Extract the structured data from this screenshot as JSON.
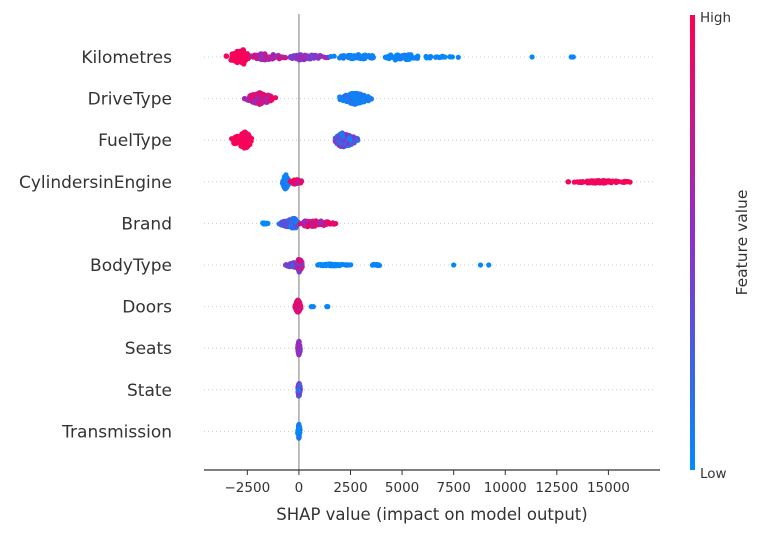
{
  "chart_data": {
    "type": "scatter",
    "subtype": "shap-beeswarm",
    "title": "",
    "xlabel": "SHAP value (impact on model output)",
    "xlim": [
      -4600,
      17500
    ],
    "xticks": [
      {
        "value": -2500,
        "label": "−2500"
      },
      {
        "value": 0,
        "label": "0"
      },
      {
        "value": 2500,
        "label": "2500"
      },
      {
        "value": 5000,
        "label": "5000"
      },
      {
        "value": 7500,
        "label": "7500"
      },
      {
        "value": 10000,
        "label": "10000"
      },
      {
        "value": 12500,
        "label": "12500"
      },
      {
        "value": 15000,
        "label": "15000"
      }
    ],
    "grid": "horizontal dotted row guides",
    "colors": {
      "low": "#008bfb",
      "high": "#ff0052",
      "mid": "#8a32c9",
      "zero_line": "#999999",
      "axis": "#333333"
    },
    "colorbar": {
      "title": "Feature value",
      "high_label": "High",
      "low_label": "Low",
      "placement": "right"
    },
    "features": [
      {
        "name": "Kilometres",
        "clusters": [
          {
            "min": -3600,
            "max": -2400,
            "peak": -2700,
            "n": 90,
            "maxSpread": 0.45,
            "fval": [
              0.92,
              1.0
            ]
          },
          {
            "min": -2400,
            "max": -500,
            "peak": -1800,
            "n": 60,
            "maxSpread": 0.22,
            "fval": [
              0.5,
              0.85
            ]
          },
          {
            "min": -500,
            "max": 1500,
            "peak": 0,
            "n": 60,
            "maxSpread": 0.18,
            "fval": [
              0.3,
              0.6
            ]
          },
          {
            "min": 1500,
            "max": 4000,
            "peak": 3000,
            "n": 60,
            "maxSpread": 0.15,
            "fval": [
              0.0,
              0.12
            ]
          },
          {
            "min": 4000,
            "max": 6000,
            "peak": 4900,
            "n": 50,
            "maxSpread": 0.22,
            "fval": [
              0.0,
              0.08
            ]
          },
          {
            "min": 6000,
            "max": 8400,
            "peak": 6200,
            "n": 18,
            "maxSpread": 0.06,
            "fval": [
              0.0,
              0.05
            ]
          }
        ],
        "points": [
          {
            "x": 11300,
            "f": 0.02
          },
          {
            "x": 13200,
            "f": 0.02
          },
          {
            "x": 13300,
            "f": 0.02
          }
        ]
      },
      {
        "name": "DriveType",
        "clusters": [
          {
            "min": -2700,
            "max": -1100,
            "peak": -1900,
            "n": 120,
            "maxSpread": 0.35,
            "fval": [
              0.55,
              1.0
            ]
          },
          {
            "min": 1900,
            "max": 3600,
            "peak": 2700,
            "n": 110,
            "maxSpread": 0.35,
            "fval": [
              0.02,
              0.15
            ]
          }
        ],
        "points": []
      },
      {
        "name": "FuelType",
        "clusters": [
          {
            "min": -3300,
            "max": -2200,
            "peak": -2600,
            "n": 120,
            "maxSpread": 0.5,
            "fval": [
              0.92,
              1.0
            ]
          },
          {
            "min": 1700,
            "max": 2900,
            "peak": 2100,
            "n": 110,
            "maxSpread": 0.45,
            "fval": [
              0.02,
              0.55
            ]
          }
        ],
        "points": []
      },
      {
        "name": "CylindersinEngine",
        "clusters": [
          {
            "min": -850,
            "max": -450,
            "peak": -650,
            "n": 80,
            "maxSpread": 0.45,
            "fval": [
              0.0,
              0.1
            ]
          },
          {
            "min": -450,
            "max": 300,
            "peak": -200,
            "n": 25,
            "maxSpread": 0.15,
            "fval": [
              0.7,
              1.0
            ]
          },
          {
            "min": 12700,
            "max": 16300,
            "peak": 14500,
            "n": 90,
            "maxSpread": 0.08,
            "fval": [
              0.9,
              1.0
            ]
          }
        ],
        "points": []
      },
      {
        "name": "Brand",
        "clusters": [
          {
            "min": -1900,
            "max": -1400,
            "peak": -1700,
            "n": 8,
            "maxSpread": 0.05,
            "fval": [
              0.0,
              0.05
            ]
          },
          {
            "min": -1000,
            "max": 0,
            "peak": -200,
            "n": 90,
            "maxSpread": 0.32,
            "fval": [
              0.0,
              0.4
            ]
          },
          {
            "min": 0,
            "max": 2000,
            "peak": 400,
            "n": 90,
            "maxSpread": 0.2,
            "fval": [
              0.55,
              1.0
            ]
          }
        ],
        "points": []
      },
      {
        "name": "BodyType",
        "clusters": [
          {
            "min": -800,
            "max": 0,
            "peak": -200,
            "n": 30,
            "maxSpread": 0.15,
            "fval": [
              0.2,
              0.6
            ]
          },
          {
            "min": -100,
            "max": 200,
            "peak": 0,
            "n": 60,
            "maxSpread": 0.45,
            "fval": [
              0.4,
              1.0
            ]
          },
          {
            "min": 800,
            "max": 2600,
            "peak": 1500,
            "n": 40,
            "maxSpread": 0.06,
            "fval": [
              0.0,
              0.05
            ]
          },
          {
            "min": 3400,
            "max": 4100,
            "peak": 3700,
            "n": 8,
            "maxSpread": 0.05,
            "fval": [
              0.0,
              0.05
            ]
          }
        ],
        "points": [
          {
            "x": 7500,
            "f": 0.02
          },
          {
            "x": 8800,
            "f": 0.02
          },
          {
            "x": 9200,
            "f": 0.02
          }
        ]
      },
      {
        "name": "Doors",
        "clusters": [
          {
            "min": -200,
            "max": 100,
            "peak": -50,
            "n": 90,
            "maxSpread": 0.45,
            "fval": [
              0.7,
              1.0
            ]
          }
        ],
        "points": [
          {
            "x": 600,
            "f": 0.02
          },
          {
            "x": 700,
            "f": 0.02
          },
          {
            "x": 1350,
            "f": 0.02
          },
          {
            "x": 1400,
            "f": 0.02
          }
        ]
      },
      {
        "name": "Seats",
        "clusters": [
          {
            "min": -60,
            "max": 80,
            "peak": 0,
            "n": 60,
            "maxSpread": 0.45,
            "fval": [
              0.3,
              0.8
            ]
          }
        ],
        "points": []
      },
      {
        "name": "State",
        "clusters": [
          {
            "min": -60,
            "max": 80,
            "peak": 0,
            "n": 60,
            "maxSpread": 0.45,
            "fval": [
              0.1,
              0.6
            ]
          }
        ],
        "points": []
      },
      {
        "name": "Transmission",
        "clusters": [
          {
            "min": -60,
            "max": 60,
            "peak": 0,
            "n": 60,
            "maxSpread": 0.45,
            "fval": [
              0.0,
              0.12
            ]
          }
        ],
        "points": []
      }
    ]
  }
}
